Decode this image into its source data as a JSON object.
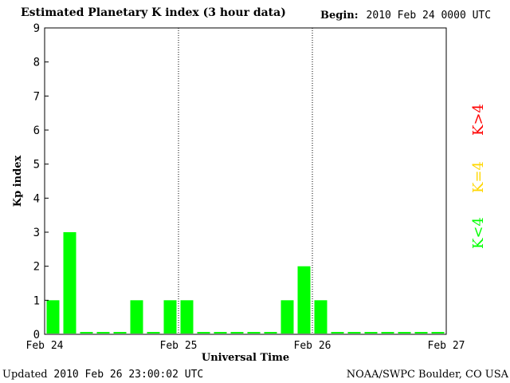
{
  "header": {
    "title": "Estimated Planetary K index (3 hour data)",
    "begin_label": "Begin:",
    "begin_value": "2010 Feb 24 0000 UTC"
  },
  "legend": {
    "high": {
      "label": "K>4",
      "color": "#ff0000"
    },
    "mid": {
      "label": "K=4",
      "color": "#ffd700"
    },
    "low": {
      "label": "K<4",
      "color": "#00ff00"
    }
  },
  "footer": {
    "updated_label": "Updated",
    "updated_value": "2010 Feb 26 23:00:02 UTC",
    "source": "NOAA/SWPC Boulder, CO USA"
  },
  "chart_data": {
    "type": "bar",
    "title": "Estimated Planetary K index (3 hour data)",
    "xlabel": "Universal Time",
    "ylabel": "Kp index",
    "ylim": [
      0,
      9
    ],
    "yticks": [
      0,
      1,
      2,
      3,
      4,
      5,
      6,
      7,
      8,
      9
    ],
    "xticks": [
      "Feb 24",
      "Feb 25",
      "Feb 26",
      "Feb 27"
    ],
    "interval_hours": 3,
    "bar_color": "#00ff00",
    "day_separators": [
      "Feb 25",
      "Feb 26"
    ],
    "grid": false,
    "values": [
      1,
      3,
      0,
      0,
      0,
      1,
      0,
      1,
      1,
      0,
      0,
      0,
      0,
      0,
      1,
      2,
      1,
      0,
      0,
      0,
      0,
      0,
      0,
      0
    ]
  }
}
